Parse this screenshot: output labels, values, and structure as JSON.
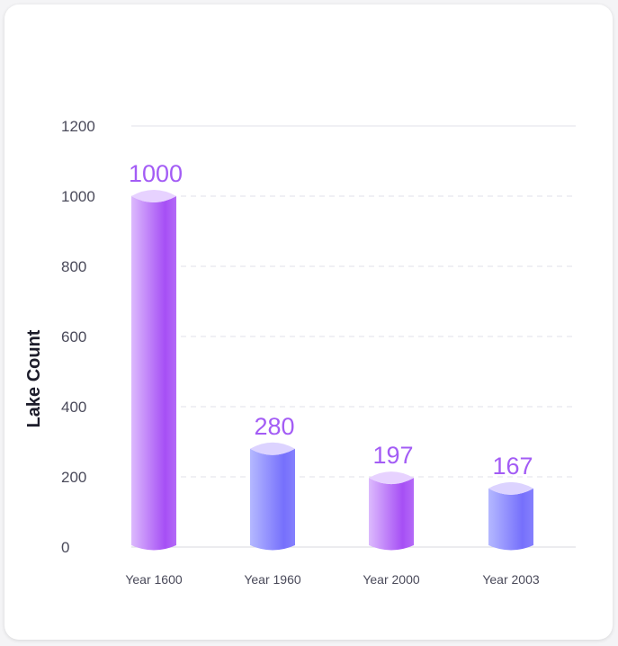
{
  "chart_data": {
    "type": "bar",
    "title": "",
    "xlabel": "",
    "ylabel": "Lake Count",
    "ylim": [
      0,
      1200
    ],
    "yticks": [
      0,
      200,
      400,
      600,
      800,
      1000,
      1200
    ],
    "grid": true,
    "categories": [
      "Year 1600",
      "Year 1960",
      "Year 2000",
      "Year 2003"
    ],
    "values": [
      1000,
      280,
      197,
      167
    ],
    "data_labels": [
      "1000",
      "280",
      "197",
      "167"
    ],
    "bar_styles": [
      "purple",
      "blue",
      "purple",
      "blue"
    ]
  },
  "colors": {
    "label_purple": "#a35cf5",
    "purple_light": "#dcbafd",
    "purple_dark": "#a64ff5",
    "purple_top": "#e7d2ff",
    "blue_light": "#b4b8ff",
    "blue_dark": "#7670fc",
    "blue_top": "#dcd3ff",
    "axis_text": "#4a4a5a",
    "grid": "#e2e2e8"
  }
}
